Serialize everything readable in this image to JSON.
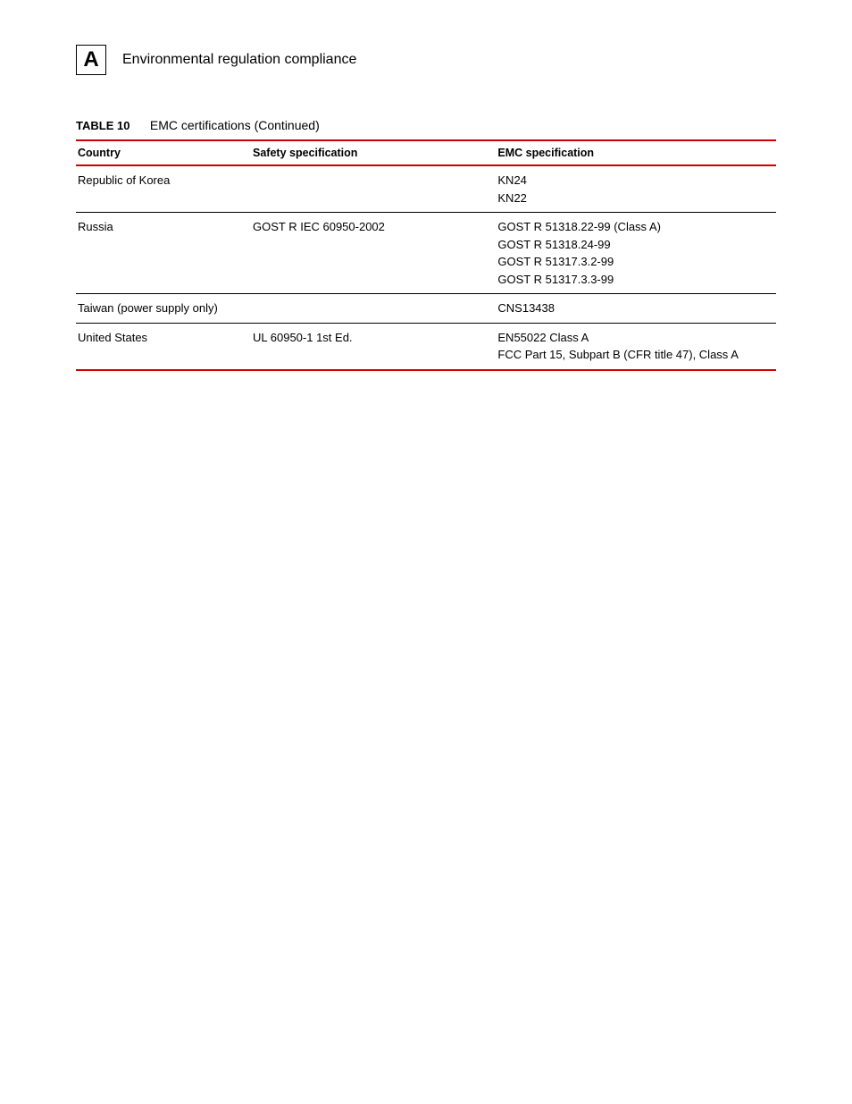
{
  "header": {
    "appendix_letter": "A",
    "section_title": "Environmental regulation compliance"
  },
  "table": {
    "caption_label": "TABLE 10",
    "caption_title": "EMC certifications  (Continued)",
    "columns": [
      "Country",
      "Safety specification",
      "EMC specification"
    ],
    "column_widths_pct": [
      25,
      35,
      40
    ],
    "header_border_color": "#cc0000",
    "row_border_color": "#000000",
    "background_color": "#ffffff",
    "text_color": "#000000",
    "font_size_pt": 10,
    "rows": [
      {
        "country": "Republic of Korea",
        "safety": "",
        "emc": [
          "KN24",
          "KN22"
        ]
      },
      {
        "country": "Russia",
        "safety": "GOST R IEC 60950-2002",
        "emc": [
          "GOST R 51318.22-99 (Class A)",
          "GOST R 51318.24-99",
          "GOST R 51317.3.2-99",
          "GOST R 51317.3.3-99"
        ]
      },
      {
        "country": "Taiwan (power supply only)",
        "safety": "",
        "emc": [
          "CNS13438"
        ]
      },
      {
        "country": "United States",
        "safety": "UL 60950-1 1st Ed.",
        "emc": [
          "EN55022 Class A",
          "FCC Part 15, Subpart B (CFR title 47), Class A"
        ]
      }
    ]
  }
}
